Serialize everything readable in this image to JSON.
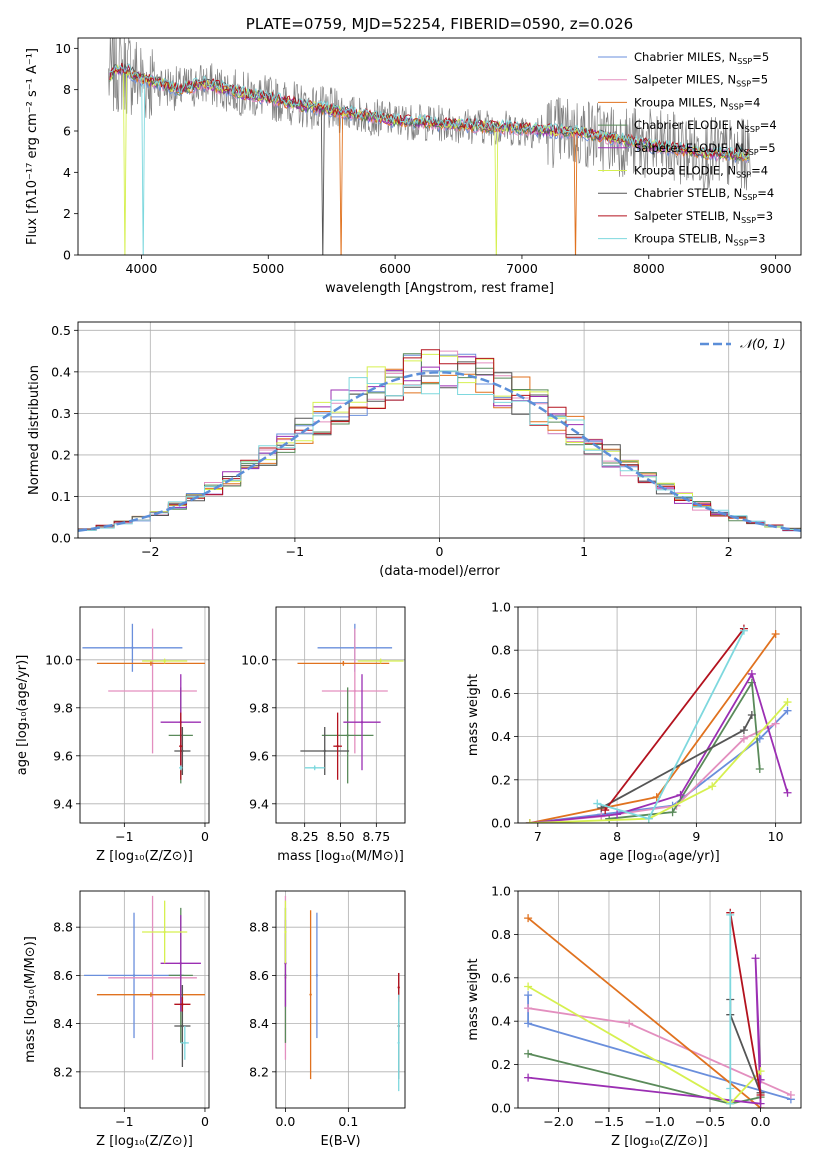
{
  "colors": {
    "chabrier_miles": "#6a8fdc",
    "salpeter_miles": "#e38fbf",
    "kroupa_miles": "#e0721f",
    "chabrier_elodie": "#5a8a5a",
    "salpeter_elodie": "#9b2fb3",
    "kroupa_elodie": "#d6f050",
    "chabrier_stelib": "#555555",
    "salpeter_stelib": "#b3121e",
    "kroupa_stelib": "#7ed8de",
    "gauss": "#5b8ed8",
    "grid": "#b0b0b0",
    "noise": "#808080"
  },
  "chart_data": [
    {
      "id": "spectrum",
      "type": "line",
      "title": "PLATE=0759, MJD=52254, FIBERID=0590, z=0.026",
      "xlabel": "wavelength [Angstrom, rest frame]",
      "ylabel": "Flux [fλ10⁻¹⁷ erg cm⁻² s⁻¹ A⁻¹]",
      "xlim": [
        3500,
        9200
      ],
      "ylim": [
        0,
        10.5
      ],
      "xticks": [
        "4000",
        "5000",
        "6000",
        "7000",
        "8000",
        "9000"
      ],
      "yticks": [
        "0",
        "2",
        "4",
        "6",
        "8",
        "10"
      ],
      "grid": false,
      "legend_position": "top-right",
      "legend": [
        "Chabrier MILES, N",
        "Salpeter MILES, N",
        "Kroupa MILES, N",
        "Chabrier ELODIE, N",
        "Salpeter ELODIE, N",
        "Kroupa ELODIE, N",
        "Chabrier STELIB, N",
        "Salpeter STELIB, N",
        "Kroupa STELIB, N"
      ],
      "legend_sub": "SSP",
      "legend_nssp": [
        "=5",
        "=5",
        "=4",
        "=4",
        "=5",
        "=4",
        "=4",
        "=3",
        "=3"
      ],
      "model_continuum": {
        "x": [
          3750,
          3800,
          3900,
          4000,
          4100,
          4300,
          4500,
          4800,
          5000,
          5300,
          5600,
          6000,
          6500,
          7000,
          7500,
          8000,
          8500,
          8800
        ],
        "y": [
          8.6,
          9.0,
          8.9,
          8.5,
          8.4,
          8.0,
          8.3,
          7.8,
          7.6,
          7.2,
          6.9,
          6.5,
          6.3,
          6.1,
          5.9,
          5.3,
          4.9,
          4.8
        ]
      }
    },
    {
      "id": "residuals",
      "type": "line",
      "xlabel": "(data-model)/error",
      "ylabel": "Normed distribution",
      "xlim": [
        -2.5,
        2.5
      ],
      "ylim": [
        0,
        0.52
      ],
      "xticks": [
        "−2",
        "−1",
        "0",
        "1",
        "2"
      ],
      "yticks": [
        "0.0",
        "0.1",
        "0.2",
        "0.3",
        "0.4",
        "0.5"
      ],
      "grid": true,
      "legend_position": "top-right",
      "legend": [
        "𝒩(0, 1)"
      ]
    },
    {
      "id": "age_vs_Z",
      "type": "scatter",
      "xlabel": "Z [log₁₀(Z/Z⊙)]",
      "ylabel": "age  [log₁₀(age/yr)]",
      "xlim": [
        -1.55,
        0.05
      ],
      "ylim": [
        9.32,
        10.22
      ],
      "xticks": [
        "−1",
        "0"
      ],
      "yticks": [
        "9.4",
        "9.6",
        "9.8",
        "10.0"
      ],
      "grid": true,
      "series": [
        {
          "x": -0.9,
          "xerr": 0.62,
          "y": 10.05,
          "yerr": 0.1
        },
        {
          "x": -0.65,
          "xerr": 0.55,
          "y": 9.87,
          "yerr": 0.26
        },
        {
          "x": -0.67,
          "xerr": 0.67,
          "y": 9.985,
          "yerr": 0.01
        },
        {
          "x": -0.3,
          "xerr": 0.15,
          "y": 9.685,
          "yerr": 0.2
        },
        {
          "x": -0.3,
          "xerr": 0.25,
          "y": 9.74,
          "yerr": 0.2
        },
        {
          "x": -0.5,
          "xerr": 0.28,
          "y": 9.995,
          "yerr": 0.01
        },
        {
          "x": -0.28,
          "xerr": 0.1,
          "y": 9.62,
          "yerr": 0.1
        },
        {
          "x": -0.3,
          "xerr": 0.02,
          "y": 9.64,
          "yerr": 0.14
        },
        {
          "x": -0.3,
          "xerr": 0.02,
          "y": 9.55,
          "yerr": 0.01
        }
      ]
    },
    {
      "id": "age_vs_mass",
      "type": "scatter",
      "xlabel": "mass [log₁₀(M/M⊙)]",
      "ylabel": "",
      "xlim": [
        8.05,
        8.95
      ],
      "ylim": [
        9.32,
        10.22
      ],
      "xticks": [
        "8.25",
        "8.50",
        "8.75"
      ],
      "yticks": [
        "9.4",
        "9.6",
        "9.8",
        "10.0"
      ],
      "grid": true,
      "series": [
        {
          "x": 8.6,
          "xerr": 0.26,
          "y": 10.05,
          "yerr": 0.1
        },
        {
          "x": 8.6,
          "xerr": 0.23,
          "y": 9.87,
          "yerr": 0.26
        },
        {
          "x": 8.52,
          "xerr": 0.32,
          "y": 9.985,
          "yerr": 0.01
        },
        {
          "x": 8.55,
          "xerr": 0.18,
          "y": 9.685,
          "yerr": 0.2
        },
        {
          "x": 8.65,
          "xerr": 0.13,
          "y": 9.74,
          "yerr": 0.2
        },
        {
          "x": 8.78,
          "xerr": 0.16,
          "y": 9.995,
          "yerr": 0.01
        },
        {
          "x": 8.39,
          "xerr": 0.17,
          "y": 9.62,
          "yerr": 0.1
        },
        {
          "x": 8.48,
          "xerr": 0.03,
          "y": 9.64,
          "yerr": 0.14
        },
        {
          "x": 8.32,
          "xerr": 0.07,
          "y": 9.55,
          "yerr": 0.01
        }
      ]
    },
    {
      "id": "weight_vs_age",
      "type": "line",
      "xlabel": "age  [log₁₀(age/yr)]",
      "ylabel": "mass weight",
      "xlim": [
        6.75,
        10.32
      ],
      "ylim": [
        0,
        1.0
      ],
      "xticks": [
        "7",
        "8",
        "9",
        "10"
      ],
      "yticks": [
        "0.0",
        "0.2",
        "0.4",
        "0.6",
        "0.8",
        "1.0"
      ],
      "grid": true,
      "series": [
        {
          "x": [
            6.9,
            7.8,
            8.7,
            9.8,
            10.15
          ],
          "y": [
            0.0,
            0.04,
            0.08,
            0.39,
            0.52
          ]
        },
        {
          "x": [
            6.9,
            7.8,
            8.75,
            9.6,
            10.0
          ],
          "y": [
            0.0,
            0.03,
            0.08,
            0.39,
            0.46
          ]
        },
        {
          "x": [
            6.9,
            8.5,
            10.0
          ],
          "y": [
            0.0,
            0.12,
            0.875
          ]
        },
        {
          "x": [
            7.9,
            8.7,
            9.7,
            9.8
          ],
          "y": [
            0.02,
            0.05,
            0.65,
            0.25
          ]
        },
        {
          "x": [
            6.9,
            8.0,
            8.8,
            9.7,
            10.15
          ],
          "y": [
            0.0,
            0.04,
            0.13,
            0.69,
            0.14
          ]
        },
        {
          "x": [
            6.9,
            8.4,
            9.2,
            10.15
          ],
          "y": [
            0.0,
            0.02,
            0.17,
            0.56
          ]
        },
        {
          "x": [
            7.8,
            9.6,
            9.7
          ],
          "y": [
            0.07,
            0.43,
            0.5
          ]
        },
        {
          "x": [
            7.85,
            9.6
          ],
          "y": [
            0.06,
            0.9
          ]
        },
        {
          "x": [
            7.75,
            8.4,
            9.6
          ],
          "y": [
            0.09,
            0.02,
            0.89
          ]
        }
      ]
    },
    {
      "id": "mass_vs_Z",
      "type": "scatter",
      "xlabel": "Z [log₁₀(Z/Z⊙)]",
      "ylabel": "mass [log₁₀(M/M⊙)]",
      "xlim": [
        -1.55,
        0.05
      ],
      "ylim": [
        8.05,
        8.95
      ],
      "xticks": [
        "−1",
        "0"
      ],
      "yticks": [
        "8.2",
        "8.4",
        "8.6",
        "8.8"
      ],
      "grid": true,
      "series": [
        {
          "x": -0.88,
          "xerr": 0.62,
          "y": 8.6,
          "yerr": 0.26
        },
        {
          "x": -0.65,
          "xerr": 0.55,
          "y": 8.59,
          "yerr": 0.34
        },
        {
          "x": -0.67,
          "xerr": 0.67,
          "y": 8.52,
          "yerr": 0.01
        },
        {
          "x": -0.3,
          "xerr": 0.15,
          "y": 8.6,
          "yerr": 0.28
        },
        {
          "x": -0.3,
          "xerr": 0.25,
          "y": 8.65,
          "yerr": 0.2
        },
        {
          "x": -0.5,
          "xerr": 0.28,
          "y": 8.78,
          "yerr": 0.13
        },
        {
          "x": -0.28,
          "xerr": 0.1,
          "y": 8.39,
          "yerr": 0.17
        },
        {
          "x": -0.28,
          "xerr": 0.1,
          "y": 8.48,
          "yerr": 0.03
        },
        {
          "x": -0.25,
          "xerr": 0.05,
          "y": 8.32,
          "yerr": 0.07
        }
      ]
    },
    {
      "id": "mass_vs_ebv",
      "type": "scatter",
      "xlabel": "E(B-V)",
      "ylabel": "",
      "xlim": [
        -0.015,
        0.19
      ],
      "ylim": [
        8.05,
        8.95
      ],
      "xticks": [
        "0.0",
        "0.1"
      ],
      "yticks": [
        "8.2",
        "8.4",
        "8.6",
        "8.8"
      ],
      "grid": true,
      "series": [
        {
          "x": 0.05,
          "xerr": 0.0,
          "y": 8.6,
          "yerr": 0.26
        },
        {
          "x": 0.0,
          "xerr": 0.0,
          "y": 8.59,
          "yerr": 0.34
        },
        {
          "x": 0.04,
          "xerr": 0.0,
          "y": 8.52,
          "yerr": 0.35
        },
        {
          "x": 0.0,
          "xerr": 0.0,
          "y": 8.6,
          "yerr": 0.28
        },
        {
          "x": 0.0,
          "xerr": 0.0,
          "y": 8.65,
          "yerr": 0.18
        },
        {
          "x": 0.0,
          "xerr": 0.0,
          "y": 8.78,
          "yerr": 0.13
        },
        {
          "x": 0.18,
          "xerr": 0.0,
          "y": 8.39,
          "yerr": 0.22
        },
        {
          "x": 0.18,
          "xerr": 0.0,
          "y": 8.55,
          "yerr": 0.06
        },
        {
          "x": 0.18,
          "xerr": 0.0,
          "y": 8.32,
          "yerr": 0.2
        }
      ]
    },
    {
      "id": "weight_vs_Z",
      "type": "line",
      "xlabel": "Z [log₁₀(Z/Z⊙)]",
      "ylabel": "mass weight",
      "xlim": [
        -2.4,
        0.4
      ],
      "ylim": [
        0,
        1.0
      ],
      "xticks": [
        "−2.0",
        "−1.5",
        "−1.0",
        "−0.5",
        "0.0"
      ],
      "yticks": [
        "0.0",
        "0.2",
        "0.4",
        "0.6",
        "0.8",
        "1.0"
      ],
      "grid": true,
      "series": [
        {
          "x": [
            -2.3,
            -2.3,
            0.3
          ],
          "y": [
            0.52,
            0.39,
            0.04
          ]
        },
        {
          "x": [
            -2.3,
            -1.3,
            0.3
          ],
          "y": [
            0.46,
            0.39,
            0.06
          ]
        },
        {
          "x": [
            -2.3,
            0.0
          ],
          "y": [
            0.875,
            0.0
          ]
        },
        {
          "x": [
            -2.3,
            -0.3,
            0.0
          ],
          "y": [
            0.25,
            0.02,
            0.05
          ]
        },
        {
          "x": [
            -2.3,
            0.0,
            -0.05,
            0.0
          ],
          "y": [
            0.14,
            0.02,
            0.69,
            0.13
          ]
        },
        {
          "x": [
            -2.3,
            -0.3,
            0.0
          ],
          "y": [
            0.56,
            0.02,
            0.17
          ]
        },
        {
          "x": [
            -0.3,
            -0.3,
            0.0
          ],
          "y": [
            0.5,
            0.43,
            0.07
          ]
        },
        {
          "x": [
            -0.3,
            0.0
          ],
          "y": [
            0.9,
            0.06
          ]
        },
        {
          "x": [
            -0.3,
            -0.3,
            -0.3
          ],
          "y": [
            0.89,
            0.09,
            0.02
          ]
        }
      ]
    }
  ]
}
